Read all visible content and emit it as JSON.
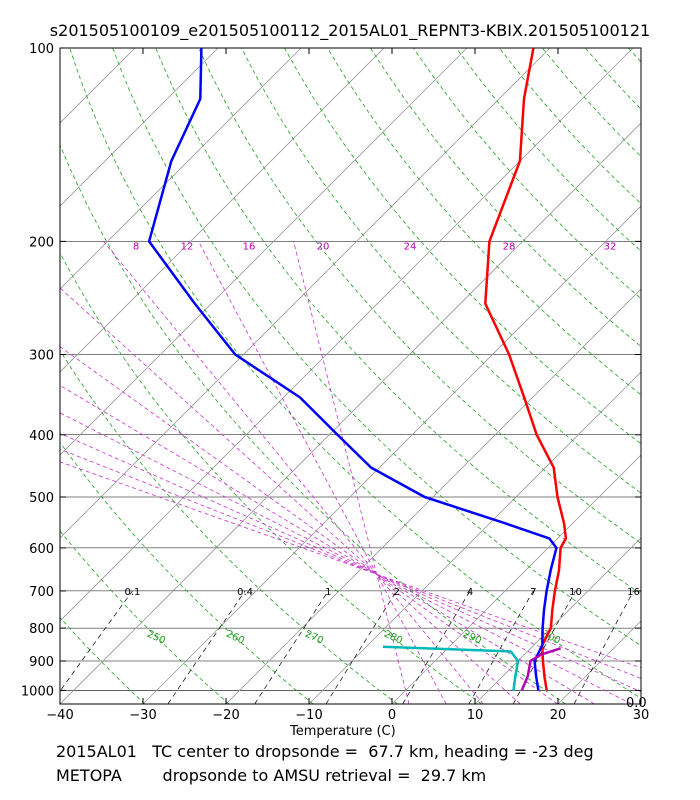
{
  "title": "s201505100109_e201505100112_2015AL01_REPNT3-KBIX.201505100121",
  "chart_data": {
    "type": "line",
    "diagram": "skew-T log-P",
    "xlabel": "Temperature (C)",
    "xlim": [
      -40,
      30
    ],
    "ylim_hPa": [
      1050,
      100
    ],
    "x_ticks": [
      "−40",
      "−30",
      "−20",
      "−10",
      "0",
      "10",
      "20",
      "30"
    ],
    "y_ticks": [
      "100",
      "200",
      "300",
      "400",
      "500",
      "600",
      "700",
      "800",
      "900",
      "1000"
    ],
    "mixing_ratio_labels": [
      "0.1",
      "0.4",
      "1",
      "2",
      "4",
      "7",
      "10",
      "16"
    ],
    "dry_adiabat_labels": [
      "250",
      "260",
      "270",
      "280",
      "290",
      "300"
    ],
    "moist_adiabat_labels": [
      "8",
      "12",
      "16",
      "20",
      "24",
      "28",
      "32"
    ],
    "series": [
      {
        "name": "temperature (red)",
        "color": "#ff0000",
        "points": [
          [
            100,
            -62
          ],
          [
            120,
            -57
          ],
          [
            150,
            -50
          ],
          [
            200,
            -44
          ],
          [
            250,
            -37
          ],
          [
            300,
            -28
          ],
          [
            350,
            -21
          ],
          [
            400,
            -15
          ],
          [
            450,
            -9
          ],
          [
            500,
            -5
          ],
          [
            550,
            -1
          ],
          [
            580,
            1
          ],
          [
            600,
            1.5
          ],
          [
            650,
            4
          ],
          [
            700,
            6
          ],
          [
            750,
            8
          ],
          [
            800,
            10
          ],
          [
            850,
            11
          ],
          [
            900,
            13
          ],
          [
            950,
            15
          ],
          [
            1000,
            17
          ]
        ]
      },
      {
        "name": "dewpoint (blue)",
        "color": "#0000ff",
        "points": [
          [
            100,
            -102
          ],
          [
            120,
            -96
          ],
          [
            150,
            -92
          ],
          [
            200,
            -85
          ],
          [
            250,
            -72
          ],
          [
            300,
            -61
          ],
          [
            350,
            -48
          ],
          [
            400,
            -39
          ],
          [
            450,
            -31
          ],
          [
            500,
            -21
          ],
          [
            550,
            -8
          ],
          [
            580,
            -1
          ],
          [
            600,
            1
          ],
          [
            650,
            3
          ],
          [
            700,
            5
          ],
          [
            750,
            7
          ],
          [
            800,
            9
          ],
          [
            850,
            11
          ],
          [
            900,
            12
          ],
          [
            950,
            14
          ],
          [
            1000,
            16
          ]
        ]
      },
      {
        "name": "retrieval temperature (magenta)",
        "color": "#b000b0",
        "points": [
          [
            860,
            13.6
          ],
          [
            880,
            12
          ],
          [
            900,
            11.5
          ],
          [
            950,
            13
          ],
          [
            1000,
            14
          ]
        ]
      },
      {
        "name": "retrieval dewpoint (cyan)",
        "color": "#00b8b8",
        "points": [
          [
            855,
            -8
          ],
          [
            870,
            8
          ],
          [
            900,
            10
          ],
          [
            950,
            11.5
          ],
          [
            1000,
            13
          ]
        ]
      }
    ]
  },
  "footer": {
    "line1": "2015AL01   TC center to dropsonde =  67.7 km, heading = -23 deg",
    "line2": "METOPA        dropsonde to AMSU retrieval =  29.7 km"
  },
  "corner_label": "0.0"
}
